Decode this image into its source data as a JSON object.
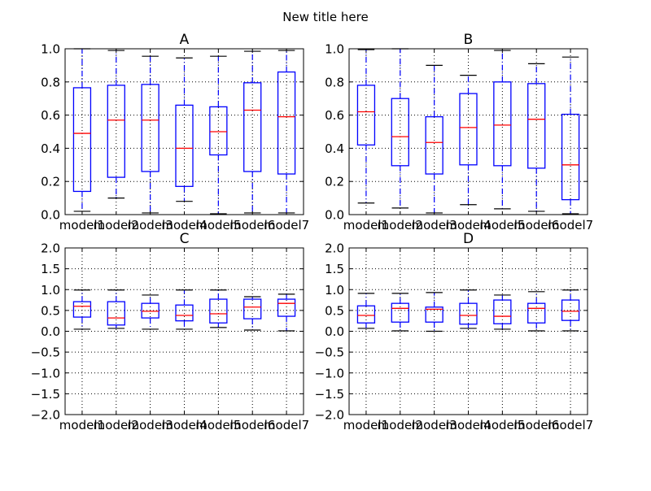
{
  "chart_data": {
    "type": "boxplot",
    "suptitle": "New title here",
    "categories": [
      "model1",
      "model2",
      "model3",
      "model4",
      "model5",
      "model6",
      "model7"
    ],
    "colors": {
      "box": "#0000ff",
      "median": "#ff0000",
      "grid": "#000000"
    },
    "subplots": [
      {
        "title": "A",
        "ylim": [
          0,
          1.0
        ],
        "yticks": [
          "0.0",
          "0.2",
          "0.4",
          "0.6",
          "0.8",
          "1.0"
        ],
        "ytick_values": [
          0,
          0.2,
          0.4,
          0.6,
          0.8,
          1.0
        ],
        "boxes": [
          {
            "whislo": 0.02,
            "q1": 0.14,
            "med": 0.49,
            "q3": 0.765,
            "whishi": 1.0
          },
          {
            "whislo": 0.1,
            "q1": 0.225,
            "med": 0.57,
            "q3": 0.78,
            "whishi": 0.99
          },
          {
            "whislo": 0.01,
            "q1": 0.26,
            "med": 0.57,
            "q3": 0.785,
            "whishi": 0.955
          },
          {
            "whislo": 0.08,
            "q1": 0.17,
            "med": 0.4,
            "q3": 0.66,
            "whishi": 0.945
          },
          {
            "whislo": 0.005,
            "q1": 0.36,
            "med": 0.5,
            "q3": 0.65,
            "whishi": 0.955
          },
          {
            "whislo": 0.01,
            "q1": 0.26,
            "med": 0.63,
            "q3": 0.795,
            "whishi": 0.985
          },
          {
            "whislo": 0.01,
            "q1": 0.245,
            "med": 0.59,
            "q3": 0.86,
            "whishi": 0.99
          }
        ]
      },
      {
        "title": "B",
        "ylim": [
          0,
          1.0
        ],
        "yticks": [
          "0.0",
          "0.2",
          "0.4",
          "0.6",
          "0.8",
          "1.0"
        ],
        "ytick_values": [
          0,
          0.2,
          0.4,
          0.6,
          0.8,
          1.0
        ],
        "boxes": [
          {
            "whislo": 0.07,
            "q1": 0.42,
            "med": 0.62,
            "q3": 0.78,
            "whishi": 0.995
          },
          {
            "whislo": 0.04,
            "q1": 0.295,
            "med": 0.47,
            "q3": 0.7,
            "whishi": 1.0
          },
          {
            "whislo": 0.01,
            "q1": 0.245,
            "med": 0.435,
            "q3": 0.59,
            "whishi": 0.9
          },
          {
            "whislo": 0.06,
            "q1": 0.3,
            "med": 0.525,
            "q3": 0.73,
            "whishi": 0.84
          },
          {
            "whislo": 0.035,
            "q1": 0.295,
            "med": 0.54,
            "q3": 0.8,
            "whishi": 0.99
          },
          {
            "whislo": 0.02,
            "q1": 0.28,
            "med": 0.575,
            "q3": 0.79,
            "whishi": 0.91
          },
          {
            "whislo": 0.005,
            "q1": 0.09,
            "med": 0.3,
            "q3": 0.605,
            "whishi": 0.95
          }
        ]
      },
      {
        "title": "C",
        "ylim": [
          -2.0,
          2.0
        ],
        "yticks": [
          "−2.0",
          "−1.5",
          "−1.0",
          "−0.5",
          "0.0",
          "0.5",
          "1.0",
          "1.5",
          "2.0"
        ],
        "ytick_values": [
          -2,
          -1.5,
          -1,
          -0.5,
          0,
          0.5,
          1,
          1.5,
          2
        ],
        "boxes": [
          {
            "whislo": 0.05,
            "q1": 0.34,
            "med": 0.6,
            "q3": 0.71,
            "whishi": 0.99
          },
          {
            "whislo": 0.07,
            "q1": 0.15,
            "med": 0.32,
            "q3": 0.71,
            "whishi": 0.99
          },
          {
            "whislo": 0.05,
            "q1": 0.32,
            "med": 0.48,
            "q3": 0.67,
            "whishi": 0.87
          },
          {
            "whislo": 0.05,
            "q1": 0.25,
            "med": 0.38,
            "q3": 0.63,
            "whishi": 0.99
          },
          {
            "whislo": 0.09,
            "q1": 0.2,
            "med": 0.42,
            "q3": 0.77,
            "whishi": 0.99
          },
          {
            "whislo": 0.03,
            "q1": 0.3,
            "med": 0.58,
            "q3": 0.77,
            "whishi": 0.83
          },
          {
            "whislo": 0.01,
            "q1": 0.36,
            "med": 0.67,
            "q3": 0.77,
            "whishi": 0.89
          }
        ]
      },
      {
        "title": "D",
        "ylim": [
          -2.0,
          2.0
        ],
        "yticks": [
          "−2.0",
          "−1.5",
          "−1.0",
          "−0.5",
          "0.0",
          "0.5",
          "1.0",
          "1.5",
          "2.0"
        ],
        "ytick_values": [
          -2,
          -1.5,
          -1,
          -0.5,
          0,
          0.5,
          1,
          1.5,
          2
        ],
        "boxes": [
          {
            "whislo": 0.07,
            "q1": 0.2,
            "med": 0.38,
            "q3": 0.61,
            "whishi": 0.91
          },
          {
            "whislo": 0.01,
            "q1": 0.22,
            "med": 0.55,
            "q3": 0.67,
            "whishi": 0.91
          },
          {
            "whislo": 0.0,
            "q1": 0.22,
            "med": 0.53,
            "q3": 0.58,
            "whishi": 0.93
          },
          {
            "whislo": 0.07,
            "q1": 0.17,
            "med": 0.38,
            "q3": 0.67,
            "whishi": 0.99
          },
          {
            "whislo": 0.05,
            "q1": 0.18,
            "med": 0.36,
            "q3": 0.75,
            "whishi": 0.87
          },
          {
            "whislo": 0.01,
            "q1": 0.2,
            "med": 0.55,
            "q3": 0.67,
            "whishi": 0.95
          },
          {
            "whislo": 0.01,
            "q1": 0.26,
            "med": 0.48,
            "q3": 0.75,
            "whishi": 0.99
          }
        ]
      }
    ]
  }
}
